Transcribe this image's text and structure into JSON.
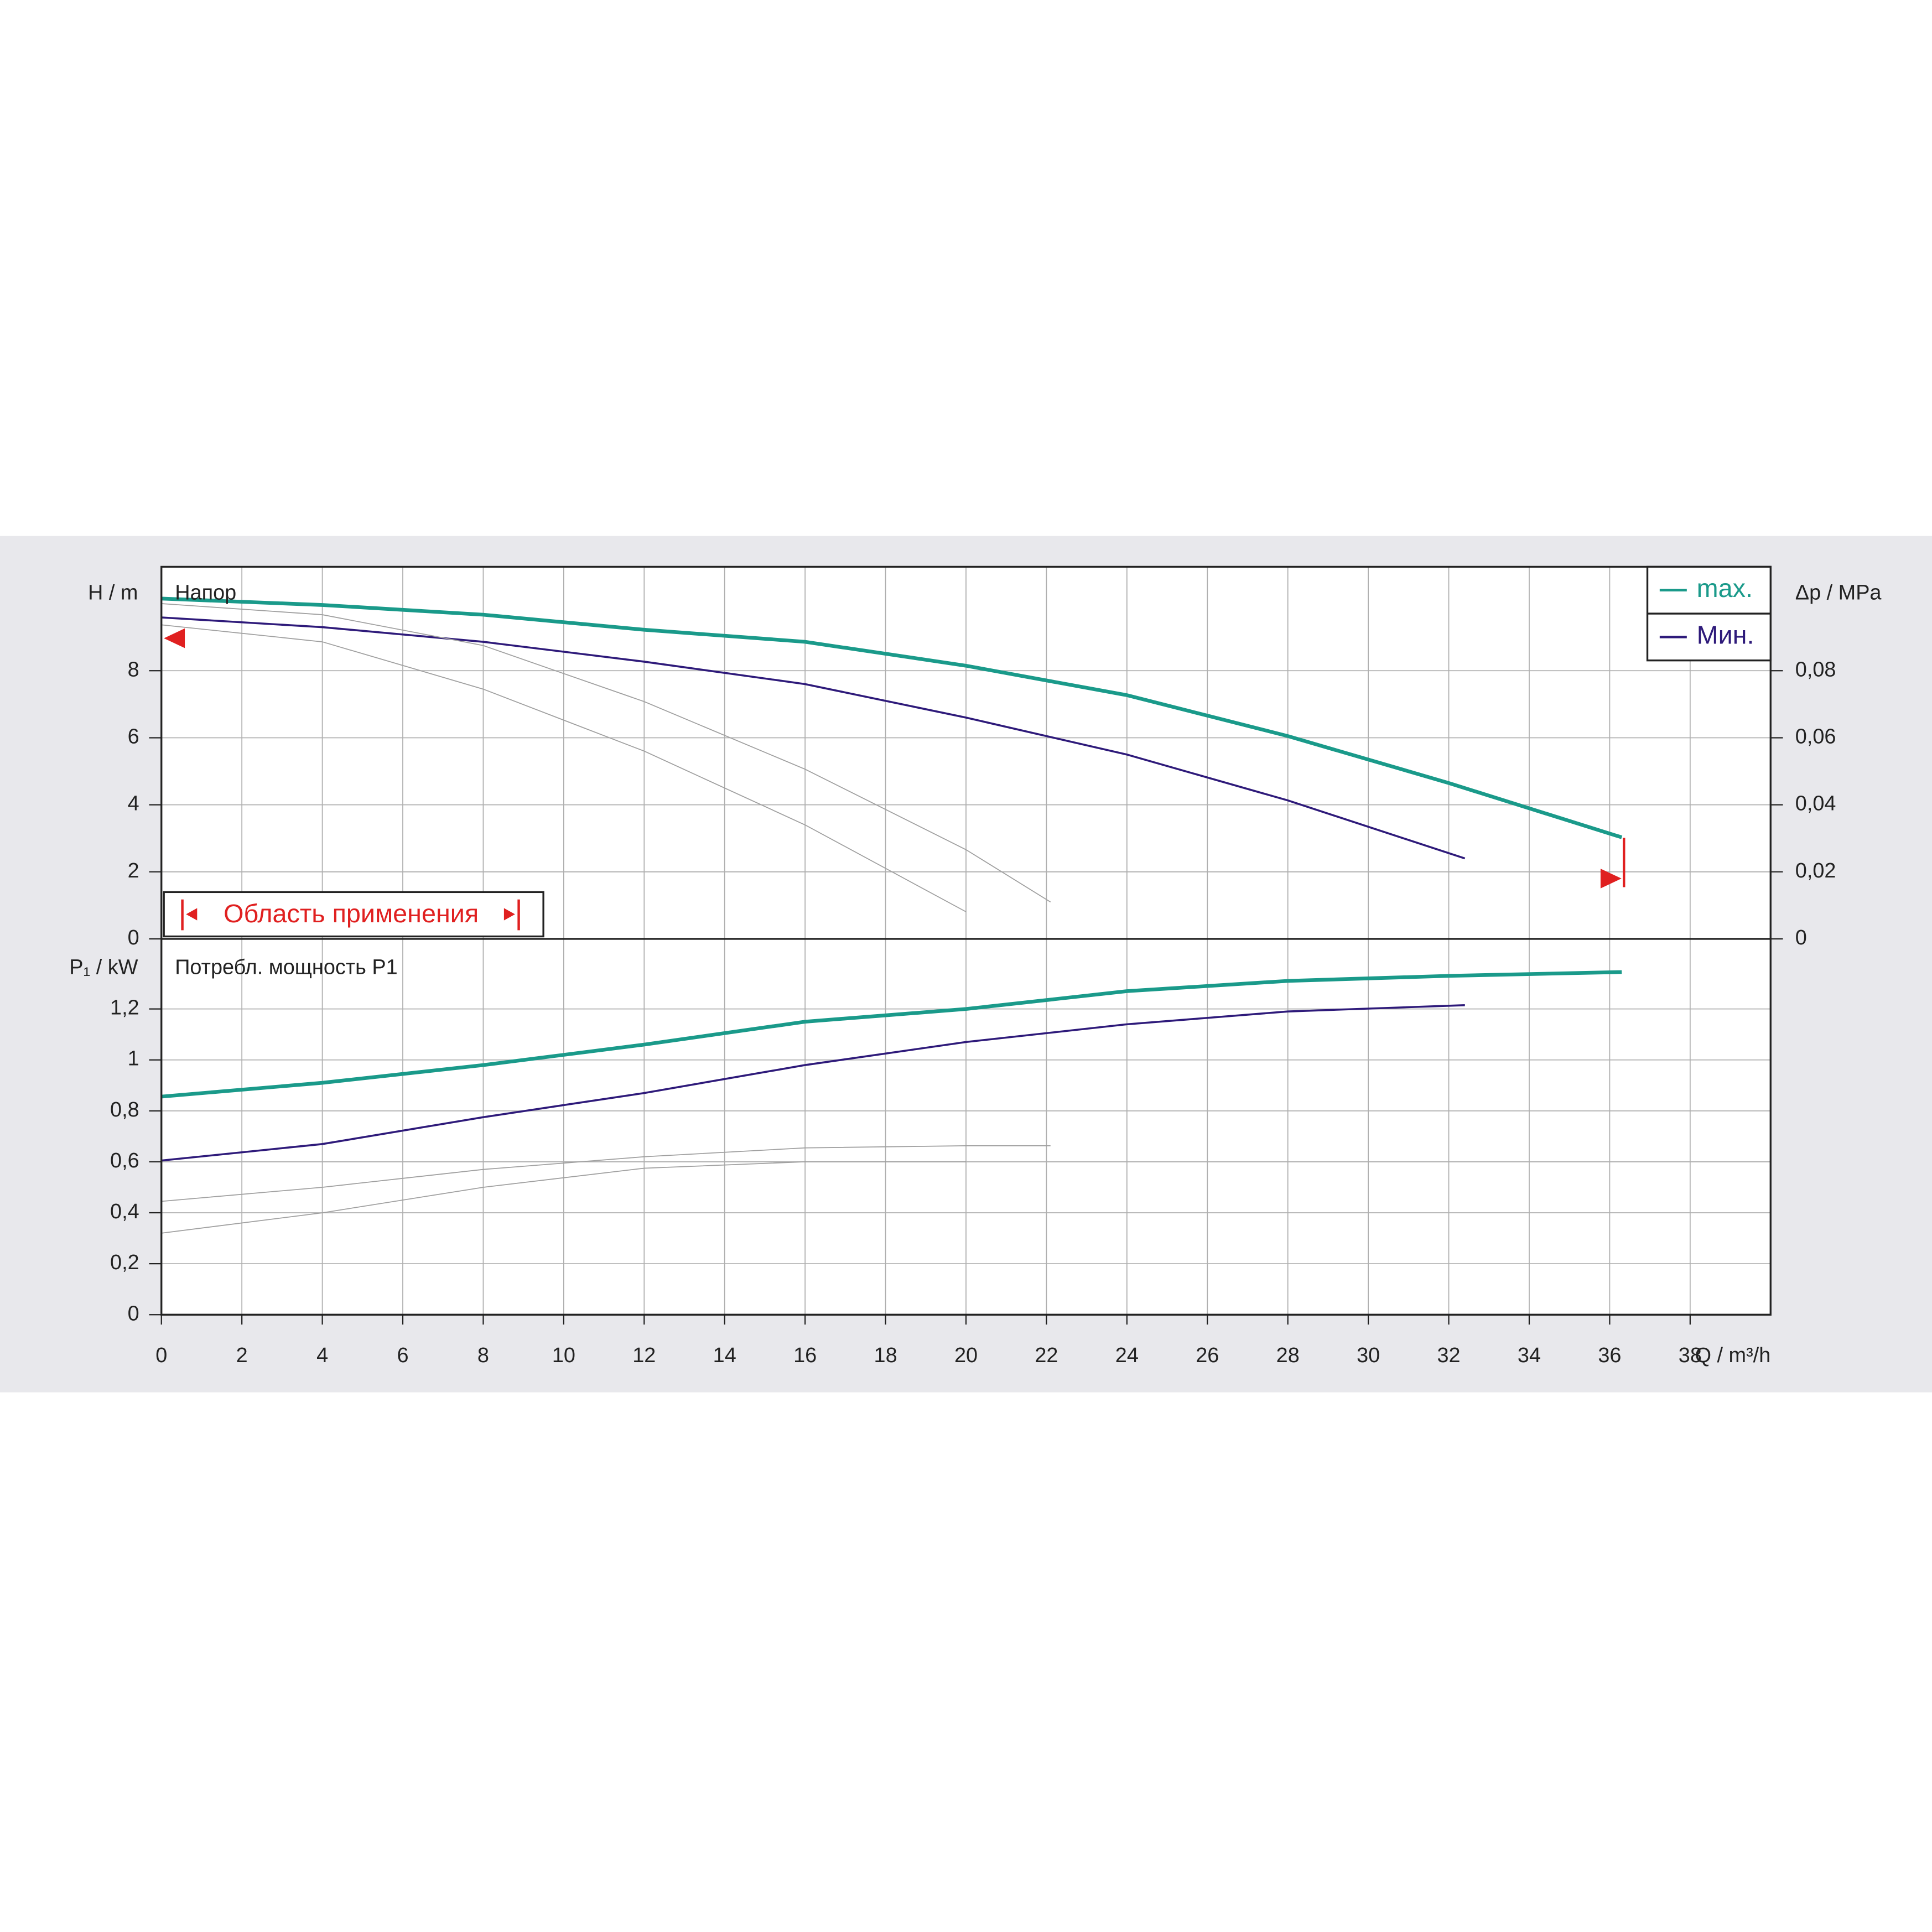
{
  "chart_data": [
    {
      "type": "line",
      "title": "Напор",
      "y_label": "H / m",
      "y2_label": "Δp / MPa",
      "xlim": [
        0,
        40
      ],
      "xticks": [
        0,
        2,
        4,
        6,
        8,
        10,
        12,
        14,
        16,
        18,
        20,
        22,
        24,
        26,
        28,
        30,
        32,
        34,
        36,
        38
      ],
      "ylim": [
        0,
        11.1
      ],
      "yticks": [
        0,
        2,
        4,
        6,
        8
      ],
      "y2lim": [
        0,
        0.111
      ],
      "y2ticks": [
        0,
        {
          "value": 0.02,
          "label": "0,02"
        },
        {
          "value": 0.04,
          "label": "0,04"
        },
        {
          "value": 0.06,
          "label": "0,06"
        },
        {
          "value": 0.08,
          "label": "0,08"
        }
      ],
      "grid": true,
      "legend": "upper right",
      "annotation": "Область применения",
      "series": [
        {
          "name": "max.",
          "color": "#1a9a8a",
          "line_width": 3,
          "x": [
            0,
            4,
            8,
            12,
            16,
            20,
            24,
            28,
            32,
            36.3
          ],
          "values": [
            10.15,
            9.96,
            9.67,
            9.22,
            8.86,
            8.15,
            7.27,
            6.05,
            4.65,
            3.03
          ]
        },
        {
          "name": "Мин.",
          "color": "#2e1a7a",
          "line_width": 1.6,
          "x": [
            0,
            4,
            8,
            12,
            16,
            20,
            24,
            28,
            32.4
          ],
          "values": [
            9.59,
            9.3,
            8.86,
            8.27,
            7.6,
            6.6,
            5.5,
            4.13,
            2.4
          ]
        },
        {
          "color": "#a0a0a0",
          "line_width": 0.8,
          "x": [
            0,
            4,
            8,
            12,
            16,
            20,
            22.1
          ],
          "values": [
            10.0,
            9.67,
            8.75,
            7.08,
            5.06,
            2.66,
            1.1
          ]
        },
        {
          "color": "#a0a0a0",
          "line_width": 0.8,
          "x": [
            0,
            4,
            8,
            12,
            16,
            20
          ],
          "values": [
            9.37,
            8.86,
            7.45,
            5.6,
            3.4,
            0.81
          ]
        }
      ]
    },
    {
      "type": "line",
      "title": "Потребл. мощность P1",
      "y_label": "P₁ / kW",
      "x_label": "Q / m³/h",
      "xlim": [
        0,
        40
      ],
      "xticks": [
        0,
        2,
        4,
        6,
        8,
        10,
        12,
        14,
        16,
        18,
        20,
        22,
        24,
        26,
        28,
        30,
        32,
        34,
        36,
        38
      ],
      "ylim": [
        0,
        1.475
      ],
      "yticks": [
        0,
        {
          "value": 0.2,
          "label": "0,2"
        },
        {
          "value": 0.4,
          "label": "0,4"
        },
        {
          "value": 0.6,
          "label": "0,6"
        },
        {
          "value": 0.8,
          "label": "0,8"
        },
        1,
        {
          "value": 1.2,
          "label": "1,2"
        }
      ],
      "grid": true,
      "series": [
        {
          "color": "#1a9a8a",
          "line_width": 3,
          "x": [
            0,
            4,
            8,
            12,
            16,
            20,
            24,
            28,
            32,
            36.3
          ],
          "values": [
            0.856,
            0.91,
            0.98,
            1.06,
            1.15,
            1.2,
            1.27,
            1.31,
            1.33,
            1.345
          ]
        },
        {
          "color": "#2e1a7a",
          "line_width": 1.6,
          "x": [
            0,
            4,
            8,
            12,
            16,
            20,
            24,
            28,
            32.4
          ],
          "values": [
            0.605,
            0.67,
            0.775,
            0.87,
            0.98,
            1.07,
            1.14,
            1.19,
            1.215
          ]
        },
        {
          "color": "#a0a0a0",
          "line_width": 0.8,
          "x": [
            0,
            4,
            8,
            12,
            16,
            20,
            22.1
          ],
          "values": [
            0.445,
            0.5,
            0.57,
            0.62,
            0.655,
            0.663,
            0.663
          ]
        },
        {
          "color": "#a0a0a0",
          "line_width": 0.8,
          "x": [
            0,
            4,
            8,
            12,
            16,
            20
          ],
          "values": [
            0.32,
            0.4,
            0.5,
            0.575,
            0.6,
            0.6
          ]
        }
      ]
    }
  ]
}
